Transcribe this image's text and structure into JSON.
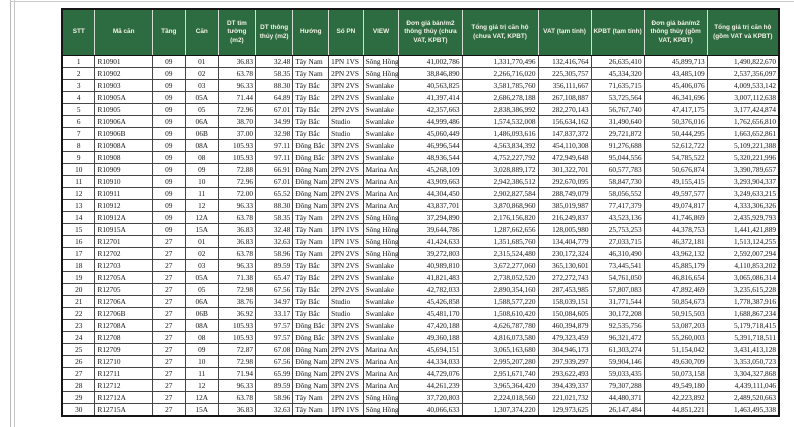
{
  "table": {
    "colors": {
      "header_bg": "#2d6b40",
      "header_fg": "#f2f2e6",
      "grid": "#454545",
      "outer_border": "#161616"
    },
    "columns": [
      {
        "key": "stt",
        "label": "STT"
      },
      {
        "key": "ma-can",
        "label": "Mã căn"
      },
      {
        "key": "tang",
        "label": "Tầng"
      },
      {
        "key": "can",
        "label": "Căn"
      },
      {
        "key": "dt-tim-tuong",
        "label": "DT tim tường (m2)"
      },
      {
        "key": "dt-thong-thuy",
        "label": "DT thông thủy (m2)"
      },
      {
        "key": "huong",
        "label": "Hướng"
      },
      {
        "key": "so-pn",
        "label": "Số PN"
      },
      {
        "key": "view",
        "label": "VIEW"
      },
      {
        "key": "don-gia-chua-vat",
        "label": "Đơn giá bán/m2 thông thủy (chưa VAT, KPBT)"
      },
      {
        "key": "tong-gia-tri-chua-vat",
        "label": "Tổng giá trị căn hộ (chưa VAT, KPBT)"
      },
      {
        "key": "vat-tam-tinh",
        "label": "VAT (tạm tính)"
      },
      {
        "key": "kpbt-tam-tinh",
        "label": "KPBT (tạm tính)"
      },
      {
        "key": "don-gia-gom-vat",
        "label": "Đơn giá bán/m2 thông thủy (gồm VAT, KPBT)"
      },
      {
        "key": "tong-gia-tri-gom-vat",
        "label": "Tổng giá trị căn hộ (gồm VAT và KPBT)"
      }
    ],
    "rows": [
      [
        "1",
        "R10901",
        "09",
        "01",
        "36.83",
        "32.48",
        "Tây Nam",
        "1PN 1VS",
        "Sông Hồng",
        "41,002,786",
        "1,331,770,496",
        "132,416,764",
        "26,635,410",
        "45,899,713",
        "1,490,822,670"
      ],
      [
        "2",
        "R10902",
        "09",
        "02",
        "63.78",
        "58.35",
        "Tây Nam",
        "2PN 2VS",
        "Sông Hồng",
        "38,846,890",
        "2,266,716,020",
        "225,305,757",
        "45,334,320",
        "43,485,109",
        "2,537,356,097"
      ],
      [
        "3",
        "R10903",
        "09",
        "03",
        "96.33",
        "88.30",
        "Tây Bắc",
        "3PN 2VS",
        "Swanlake",
        "40,563,825",
        "3,581,785,760",
        "356,111,667",
        "71,635,715",
        "45,406,076",
        "4,009,533,142"
      ],
      [
        "4",
        "R10905A",
        "09",
        "05A",
        "71.44",
        "64.89",
        "Tây Bắc",
        "2PN 2VS",
        "Swanlake",
        "41,397,414",
        "2,686,278,188",
        "267,108,887",
        "53,725,564",
        "46,341,696",
        "3,007,112,638"
      ],
      [
        "5",
        "R10905",
        "09",
        "05",
        "72.96",
        "67.01",
        "Tây Bắc",
        "2PN 2VS",
        "Swanlake",
        "42,357,663",
        "2,838,386,992",
        "282,270,143",
        "56,767,740",
        "47,417,175",
        "3,177,424,874"
      ],
      [
        "6",
        "R10906A",
        "09",
        "06A",
        "38.70",
        "34.99",
        "Tây Bắc",
        "Studio",
        "Swanlake",
        "44,999,486",
        "1,574,532,008",
        "156,634,162",
        "31,490,640",
        "50,376,016",
        "1,762,656,810"
      ],
      [
        "7",
        "R10906B",
        "09",
        "06B",
        "37.00",
        "32.98",
        "Tây Bắc",
        "Studio",
        "Swanlake",
        "45,060,449",
        "1,486,093,616",
        "147,837,372",
        "29,721,872",
        "50,444,295",
        "1,663,652,861"
      ],
      [
        "8",
        "R10908A",
        "09",
        "08A",
        "105.93",
        "97.11",
        "Đông Bắc",
        "3PN 2VS",
        "Swanlake",
        "46,996,544",
        "4,563,834,392",
        "454,110,308",
        "91,276,688",
        "52,612,722",
        "5,109,221,388"
      ],
      [
        "9",
        "R10908",
        "09",
        "08",
        "105.93",
        "97.11",
        "Đông Bắc",
        "3PN 2VS",
        "Swanlake",
        "48,936,544",
        "4,752,227,792",
        "472,949,648",
        "95,044,556",
        "54,785,522",
        "5,320,221,996"
      ],
      [
        "10",
        "R10909",
        "09",
        "09",
        "72.88",
        "66.91",
        "Đông Nam",
        "2PN 2VS",
        "Marina Arc",
        "45,268,109",
        "3,028,889,172",
        "301,322,701",
        "60,577,783",
        "50,676,874",
        "3,390,789,657"
      ],
      [
        "11",
        "R10910",
        "09",
        "10",
        "72.96",
        "67.01",
        "Đông Nam",
        "2PN 2VS",
        "Marina Arc",
        "43,909,663",
        "2,942,386,512",
        "292,670,095",
        "58,847,730",
        "49,155,415",
        "3,293,904,337"
      ],
      [
        "12",
        "R10911",
        "09",
        "11",
        "72.00",
        "65.52",
        "Đông Nam",
        "2PN 2VS",
        "Marina Arc",
        "44,304,450",
        "2,902,827,584",
        "288,749,079",
        "58,056,552",
        "49,597,577",
        "3,249,633,215"
      ],
      [
        "13",
        "R10912",
        "09",
        "12",
        "96.33",
        "88.30",
        "Đông Nam",
        "3PN 2VS",
        "Marina Arc",
        "43,837,701",
        "3,870,868,960",
        "385,019,987",
        "77,417,379",
        "49,074,817",
        "4,333,306,326"
      ],
      [
        "14",
        "R10912A",
        "09",
        "12A",
        "63.78",
        "58.35",
        "Tây Nam",
        "2PN 2VS",
        "Sông Hồng",
        "37,294,890",
        "2,176,156,820",
        "216,249,837",
        "43,523,136",
        "41,746,869",
        "2,435,929,793"
      ],
      [
        "15",
        "R10915A",
        "09",
        "15A",
        "36.83",
        "32.48",
        "Tây Nam",
        "1PN 1VS",
        "Sông Hồng",
        "39,644,786",
        "1,287,662,656",
        "128,005,980",
        "25,753,253",
        "44,378,753",
        "1,441,421,889"
      ],
      [
        "16",
        "R12701",
        "27",
        "01",
        "36.83",
        "32.63",
        "Tây Nam",
        "1PN 1VS",
        "Sông Hồng",
        "41,424,633",
        "1,351,685,760",
        "134,404,779",
        "27,033,715",
        "46,372,181",
        "1,513,124,255"
      ],
      [
        "17",
        "R12702",
        "27",
        "02",
        "63.78",
        "58.96",
        "Tây Nam",
        "2PN 2VS",
        "Sông Hồng",
        "39,272,803",
        "2,315,524,480",
        "230,172,324",
        "46,310,490",
        "43,962,132",
        "2,592,007,294"
      ],
      [
        "18",
        "R12703",
        "27",
        "03",
        "96.33",
        "89.59",
        "Tây Bắc",
        "3PN 2VS",
        "Swanlake",
        "40,989,810",
        "3,672,277,060",
        "365,130,601",
        "73,445,541",
        "45,885,179",
        "4,110,853,202"
      ],
      [
        "19",
        "R12705A",
        "27",
        "05A",
        "71.38",
        "65.47",
        "Tây Bắc",
        "2PN 2VS",
        "Swanlake",
        "41,821,483",
        "2,738,052,520",
        "272,272,743",
        "54,761,050",
        "46,816,654",
        "3,065,086,314"
      ],
      [
        "20",
        "R12705",
        "27",
        "05",
        "72.98",
        "67.56",
        "Tây Bắc",
        "2PN 2VS",
        "Swanlake",
        "42,782,033",
        "2,890,354,160",
        "287,453,985",
        "57,807,083",
        "47,892,469",
        "3,235,615,228"
      ],
      [
        "21",
        "R12706A",
        "27",
        "06A",
        "38.76",
        "34.97",
        "Tây Bắc",
        "Studio",
        "Swanlake",
        "45,426,858",
        "1,588,577,220",
        "158,039,151",
        "31,771,544",
        "50,854,673",
        "1,778,387,916"
      ],
      [
        "22",
        "R12706B",
        "27",
        "06B",
        "36.92",
        "33.17",
        "Tây Bắc",
        "Studio",
        "Swanlake",
        "45,481,170",
        "1,508,610,420",
        "150,084,605",
        "30,172,208",
        "50,915,503",
        "1,688,867,234"
      ],
      [
        "23",
        "R12708A",
        "27",
        "08A",
        "105.93",
        "97.57",
        "Đông Bắc",
        "3PN 2VS",
        "Swanlake",
        "47,420,188",
        "4,626,787,780",
        "460,394,879",
        "92,535,756",
        "53,087,203",
        "5,179,718,415"
      ],
      [
        "24",
        "R12708",
        "27",
        "08",
        "105.93",
        "97.57",
        "Đông Bắc",
        "3PN 2VS",
        "Swanlake",
        "49,360,188",
        "4,816,073,580",
        "479,323,459",
        "96,321,472",
        "55,260,003",
        "5,391,718,511"
      ],
      [
        "25",
        "R12709",
        "27",
        "09",
        "72.87",
        "67.08",
        "Đông Nam",
        "2PN 2VS",
        "Marina Arc",
        "45,694,151",
        "3,065,163,680",
        "304,946,173",
        "61,303,274",
        "51,154,042",
        "3,431,413,128"
      ],
      [
        "26",
        "R12710",
        "27",
        "10",
        "72.98",
        "67.56",
        "Đông Nam",
        "2PN 2VS",
        "Marina Arc",
        "44,334,033",
        "2,995,207,280",
        "297,939,297",
        "59,904,146",
        "49,630,709",
        "3,353,050,723"
      ],
      [
        "27",
        "R12711",
        "27",
        "11",
        "71.94",
        "65.99",
        "Đông Nam",
        "2PN 2VS",
        "Marina Arc",
        "44,729,076",
        "2,951,671,740",
        "293,622,493",
        "59,033,435",
        "50,073,158",
        "3,304,327,868"
      ],
      [
        "28",
        "R12712",
        "27",
        "12",
        "96.33",
        "89.59",
        "Đông Nam",
        "3PN 2VS",
        "Marina Arc",
        "44,261,239",
        "3,965,364,420",
        "394,439,337",
        "79,307,288",
        "49,549,180",
        "4,439,111,046"
      ],
      [
        "29",
        "R12712A",
        "27",
        "12A",
        "63.78",
        "58.96",
        "Tây Nam",
        "2PN 2VS",
        "Sông Hồng",
        "37,720,803",
        "2,224,018,560",
        "221,021,732",
        "44,480,371",
        "42,223,892",
        "2,489,520,663"
      ],
      [
        "30",
        "R12715A",
        "27",
        "15A",
        "36.83",
        "32.63",
        "Tây Nam",
        "1PN 1VS",
        "Sông Hồng",
        "40,066,633",
        "1,307,374,220",
        "129,973,625",
        "26,147,484",
        "44,851,221",
        "1,463,495,338"
      ]
    ]
  }
}
